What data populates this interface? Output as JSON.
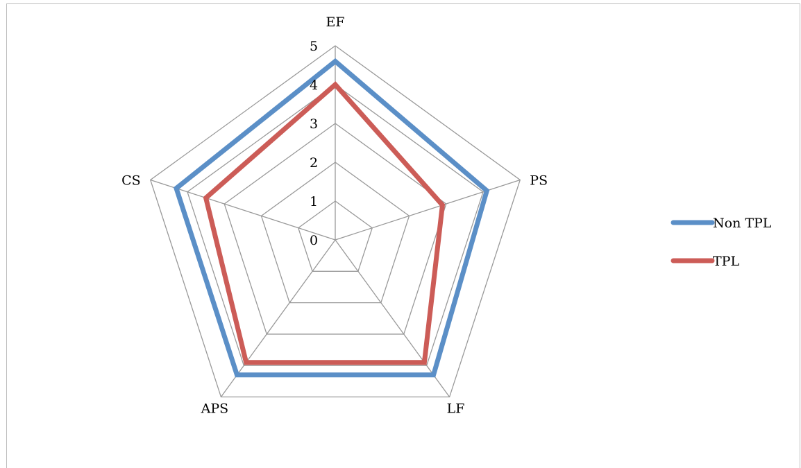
{
  "chart_data": {
    "type": "radar",
    "categories": [
      "EF",
      "PS",
      "LF",
      "APS",
      "CS"
    ],
    "rlim": [
      0,
      5
    ],
    "ticks": [
      0,
      1,
      2,
      3,
      4,
      5
    ],
    "grid": true,
    "legend": "right",
    "series": [
      {
        "name": "Non TPL",
        "values": [
          4.6,
          4.1,
          4.3,
          4.3,
          4.3
        ],
        "color": "#5b8fc7"
      },
      {
        "name": "TPL",
        "values": [
          4.0,
          2.9,
          3.9,
          3.9,
          3.5
        ],
        "color": "#cc5c57"
      }
    ]
  }
}
